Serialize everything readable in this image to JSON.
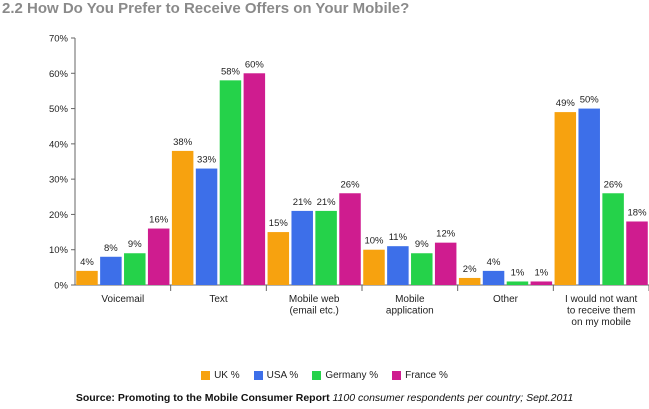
{
  "chart_data": {
    "type": "bar",
    "title": "2.2 How Do You Prefer to Receive Offers on Your Mobile?",
    "categories": [
      [
        "Voicemail"
      ],
      [
        "Text"
      ],
      [
        "Mobile web",
        "(email etc.)"
      ],
      [
        "Mobile",
        "application"
      ],
      [
        "Other"
      ],
      [
        "I would not want",
        "to receive them",
        "on my mobile"
      ]
    ],
    "series": [
      {
        "name": "UK %",
        "color": "#f7a20f",
        "values": [
          4,
          38,
          15,
          10,
          2,
          49
        ]
      },
      {
        "name": "USA %",
        "color": "#3d6fe9",
        "values": [
          8,
          33,
          21,
          11,
          4,
          50
        ]
      },
      {
        "name": "Germany %",
        "color": "#25d24a",
        "values": [
          9,
          58,
          21,
          9,
          1,
          26
        ]
      },
      {
        "name": "France %",
        "color": "#cf1c8f",
        "values": [
          16,
          60,
          26,
          12,
          1,
          18
        ]
      }
    ],
    "ylim": [
      0,
      70
    ],
    "yticks": [
      "0%",
      "10%",
      "20%",
      "30%",
      "40%",
      "50%",
      "60%",
      "70%"
    ],
    "value_suffix": "%",
    "grid": false,
    "legend_position": "bottom"
  },
  "source": {
    "bold": "Source: Promoting to the Mobile Consumer Report",
    "italic": "1100 consumer respondents per country; Sept.2011"
  }
}
